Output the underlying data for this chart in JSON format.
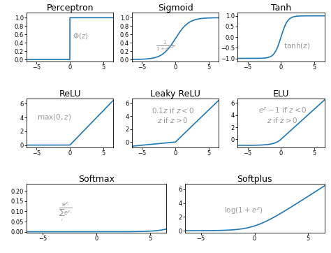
{
  "title_perceptron": "Perceptron",
  "title_sigmoid": "Sigmoid",
  "title_tanh": "Tanh",
  "title_relu": "ReLU",
  "title_leaky": "Leaky ReLU",
  "title_elu": "ELU",
  "title_softmax": "Softmax",
  "title_softplus": "Softplus",
  "line_color": "#1f77b4",
  "line_width": 1.2,
  "x_range": [
    -6.5,
    6.5
  ],
  "annotation_color": "#999999",
  "annotation_fontsize": 7.5,
  "title_fontsize": 9,
  "tick_fontsize": 6,
  "figsize": [
    4.74,
    3.62
  ],
  "dpi": 100,
  "hspace": 0.75,
  "wspace": 0.55
}
